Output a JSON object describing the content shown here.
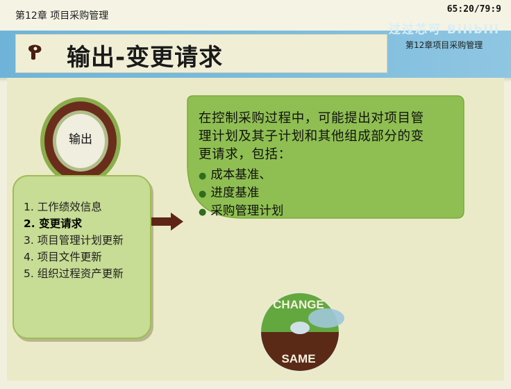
{
  "header": {
    "chapter_label": "第12章 项目采购管理",
    "timestamp": "65:20/79:9"
  },
  "banner": {
    "title": "输出-变更请求",
    "brand": "过过芯可 Bilibili",
    "chapter_label": "第12章项目采购管理"
  },
  "output_circle": {
    "label": "输出"
  },
  "output_list": {
    "items": [
      {
        "label": "1. 工作绩效信息"
      },
      {
        "label": "2. 变更请求"
      },
      {
        "label": "3. 项目管理计划更新"
      },
      {
        "label": "4. 项目文件更新"
      },
      {
        "label": "5. 组织过程资产更新"
      }
    ],
    "selected_index": 1
  },
  "description": {
    "lines": [
      "在控制采购过程中，可能提出对项目管",
      "理计划及其子计划和其他组成部分的变",
      "更请求，包括："
    ],
    "bullets": [
      "成本基准、",
      "进度基准",
      "采购管理计划"
    ]
  },
  "badge": {
    "top_text": "CHANGE",
    "bottom_text": "SAME"
  },
  "colors": {
    "banner_blue": "#7cbcdc",
    "callout_green": "#8fbf52",
    "list_green": "#c7dc94",
    "ring_brown": "#6a2d1c",
    "arrow_brown": "#5e2516"
  }
}
